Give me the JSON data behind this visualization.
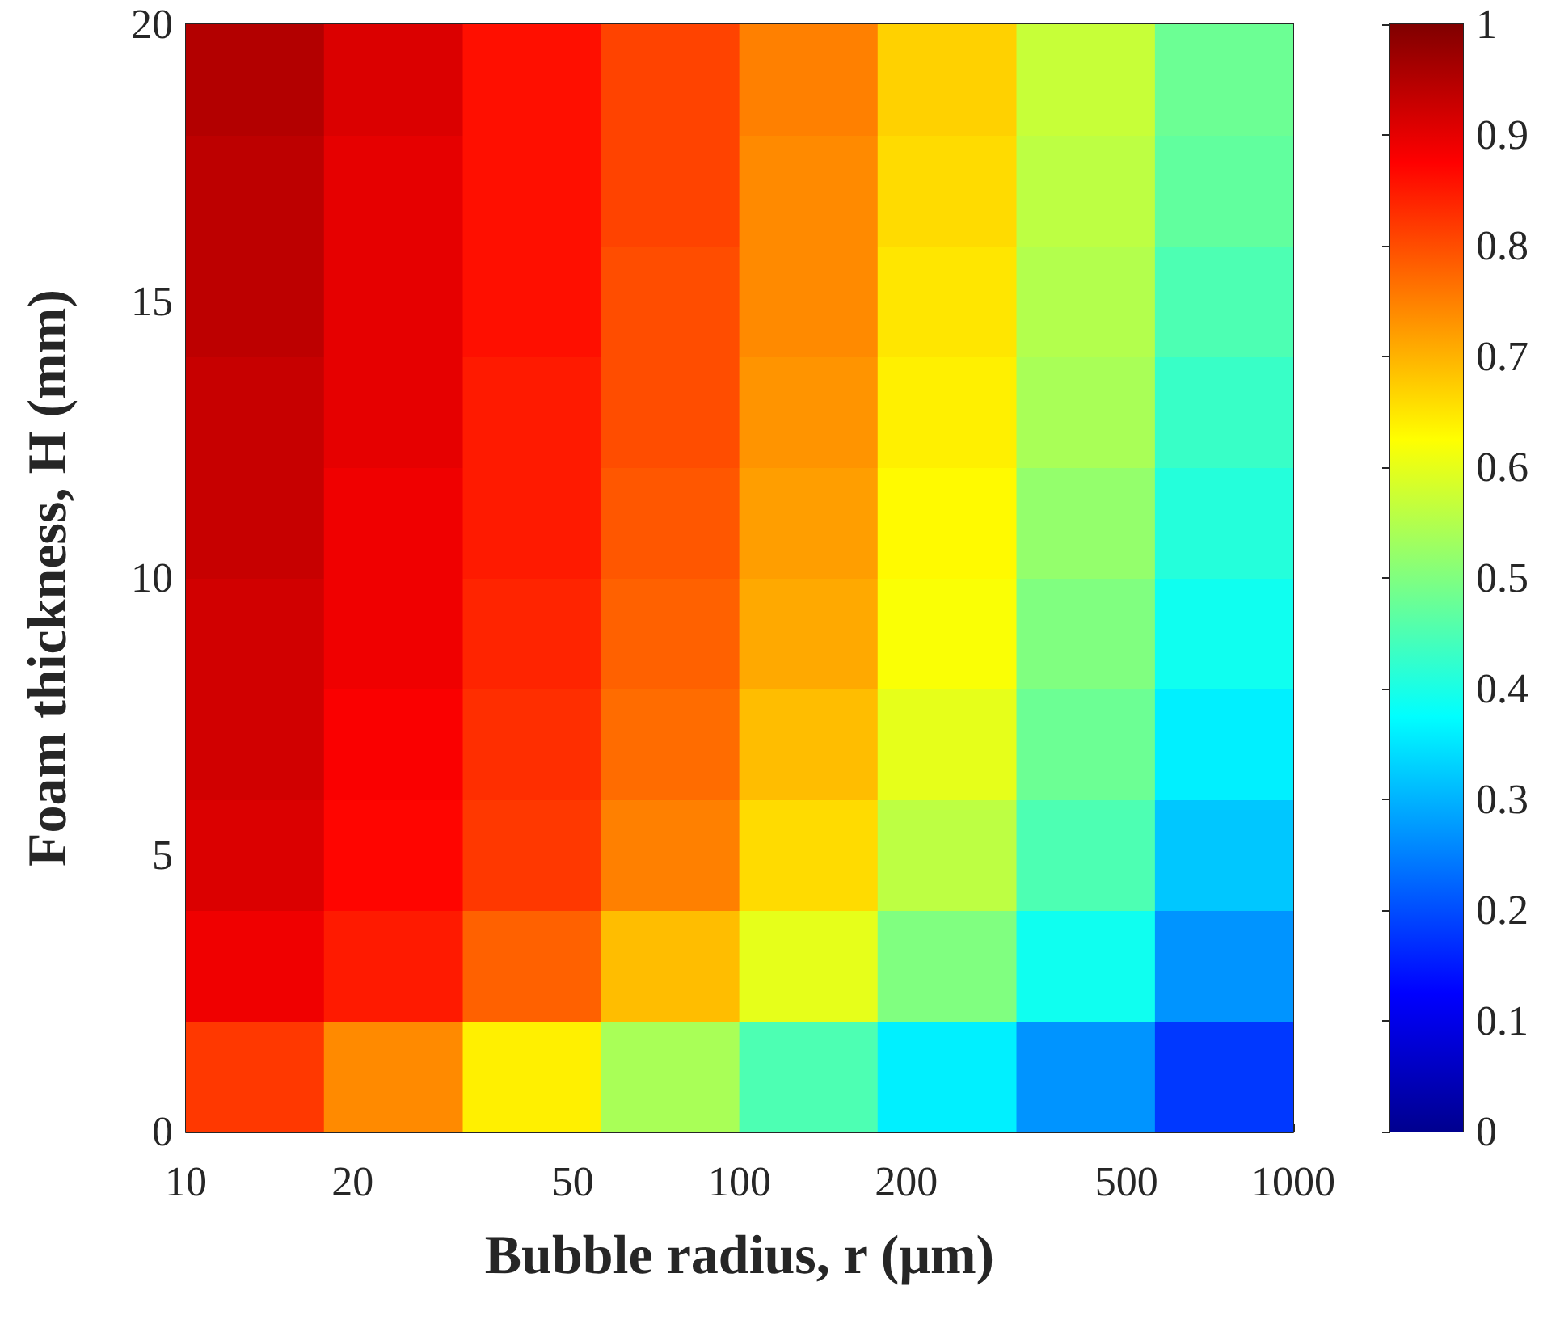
{
  "chart_data": {
    "type": "heatmap",
    "xlabel": "Bubble radius, r (μm)",
    "ylabel": "Foam thickness, H (mm)",
    "log": "x",
    "x": [
      13.3,
      23.7,
      42.2,
      75,
      133,
      237,
      422,
      750
    ],
    "y": [
      1,
      3,
      5,
      7,
      9,
      11,
      13,
      15,
      17,
      19
    ],
    "cells": [
      [
        0.82,
        0.74,
        0.64,
        0.54,
        0.45,
        0.36,
        0.27,
        0.18
      ],
      [
        0.89,
        0.85,
        0.78,
        0.69,
        0.6,
        0.5,
        0.39,
        0.27
      ],
      [
        0.91,
        0.87,
        0.82,
        0.75,
        0.66,
        0.56,
        0.45,
        0.32
      ],
      [
        0.92,
        0.88,
        0.83,
        0.77,
        0.69,
        0.6,
        0.48,
        0.36
      ],
      [
        0.92,
        0.89,
        0.84,
        0.78,
        0.71,
        0.62,
        0.5,
        0.39
      ],
      [
        0.93,
        0.89,
        0.85,
        0.79,
        0.72,
        0.63,
        0.52,
        0.41
      ],
      [
        0.93,
        0.9,
        0.85,
        0.8,
        0.73,
        0.64,
        0.54,
        0.43
      ],
      [
        0.94,
        0.9,
        0.86,
        0.8,
        0.74,
        0.65,
        0.55,
        0.45
      ],
      [
        0.94,
        0.9,
        0.86,
        0.81,
        0.74,
        0.66,
        0.56,
        0.47
      ],
      [
        0.95,
        0.91,
        0.86,
        0.81,
        0.75,
        0.67,
        0.57,
        0.48
      ]
    ],
    "xlim": [
      10,
      1000
    ],
    "xticks": [
      10,
      20,
      50,
      100,
      200,
      500,
      1000
    ],
    "ylim": [
      0,
      20
    ],
    "yticks": [
      0,
      5,
      10,
      15,
      20
    ],
    "clim": [
      0,
      1
    ],
    "cticks": [
      0,
      0.1,
      0.2,
      0.3,
      0.4,
      0.5,
      0.6,
      0.7,
      0.8,
      0.9,
      1
    ]
  }
}
